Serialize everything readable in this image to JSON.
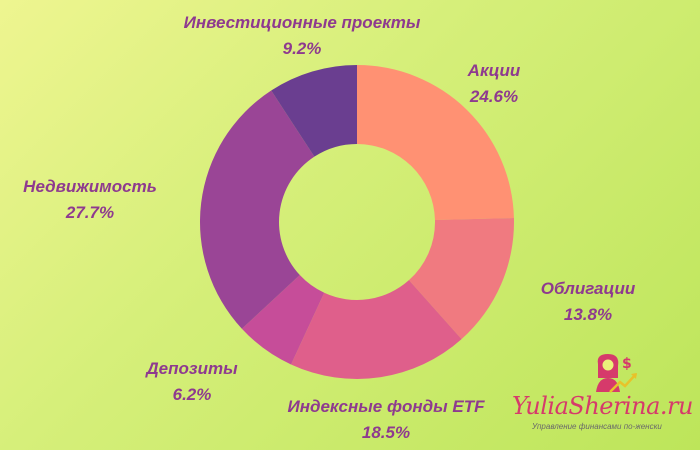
{
  "chart_data": {
    "type": "pie",
    "donut": true,
    "slices": [
      {
        "name": "Акции",
        "value": 24.6,
        "label": "24.6%",
        "color": "#ff9173"
      },
      {
        "name": "Облигации",
        "value": 13.8,
        "label": "13.8%",
        "color": "#f07a80"
      },
      {
        "name": "Индексные фонды ETF",
        "value": 18.5,
        "label": "18.5%",
        "color": "#df5f8b"
      },
      {
        "name": "Депозиты",
        "value": 6.2,
        "label": "6.2%",
        "color": "#c64d99"
      },
      {
        "name": "Недвижимость",
        "value": 27.7,
        "label": "27.7%",
        "color": "#9a4596"
      },
      {
        "name": "Инвестиционные проекты",
        "value": 9.2,
        "label": "9.2%",
        "color": "#6a3e90"
      }
    ]
  },
  "branding": {
    "logo_text": "YuliaSherina.ru",
    "tagline": "Управление финансами по-женски",
    "logo_icon": "woman-dollar-growth-icon"
  },
  "colors": {
    "label_text": "#8e3a8f",
    "logo_pink": "#d63a6b"
  }
}
